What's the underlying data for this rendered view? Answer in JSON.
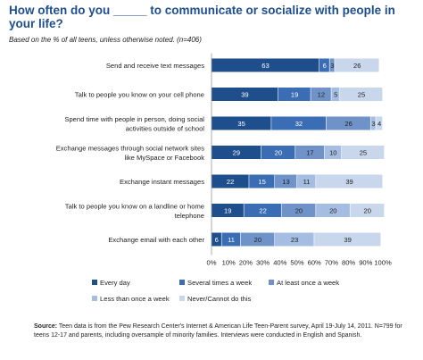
{
  "title": "How often do you _____ to communicate or socialize with people in your life?",
  "subtitle": "Based on the % of all teens, unless otherwise noted.  (n=406)",
  "source_label": "Source:",
  "source_text": "Teen data is from the Pew Research Center's Internet & American Life Teen-Parent survey, April 19-July 14, 2011. N=799 for teens 12-17 and parents, including oversample of minority families. Interviews were conducted in English and Spanish.",
  "chart_data": {
    "type": "bar",
    "orientation": "horizontal",
    "stacked": true,
    "categories": [
      [
        "Send and receive text messages"
      ],
      [
        "Talk to people you know on your cell phone"
      ],
      [
        "Spend time with people in person, doing social",
        "activities outside of school"
      ],
      [
        "Exchange messages through social network sites",
        "like MySpace or Facebook"
      ],
      [
        "Exchange instant messages"
      ],
      [
        "Talk to people you know on a landline or home",
        "telephone"
      ],
      [
        "Exchange email with each other"
      ]
    ],
    "series": [
      {
        "name": "Every day",
        "color": "#1f4e8c",
        "label_color": "#ffffff",
        "values": [
          63,
          39,
          35,
          29,
          22,
          19,
          6
        ]
      },
      {
        "name": "Several times a week",
        "color": "#3a6db3",
        "label_color": "#ffffff",
        "values": [
          6,
          19,
          32,
          20,
          15,
          22,
          11
        ]
      },
      {
        "name": "At least once a week",
        "color": "#6f93c9",
        "label_color": "#222222",
        "values": [
          3,
          12,
          26,
          17,
          13,
          20,
          20
        ]
      },
      {
        "name": "Less than once a week",
        "color": "#a4bde0",
        "label_color": "#222222",
        "values": [
          null,
          5,
          3,
          10,
          11,
          20,
          23
        ]
      },
      {
        "name": "Never/Cannot do this",
        "color": "#c9d7ec",
        "label_color": "#222222",
        "values": [
          26,
          25,
          4,
          25,
          39,
          20,
          39
        ]
      }
    ],
    "xlim": [
      0,
      100
    ],
    "xticks": [
      "0%",
      "10%",
      "20%",
      "30%",
      "40%",
      "50%",
      "60%",
      "70%",
      "80%",
      "90%",
      "100%"
    ],
    "legend_position": "bottom"
  }
}
